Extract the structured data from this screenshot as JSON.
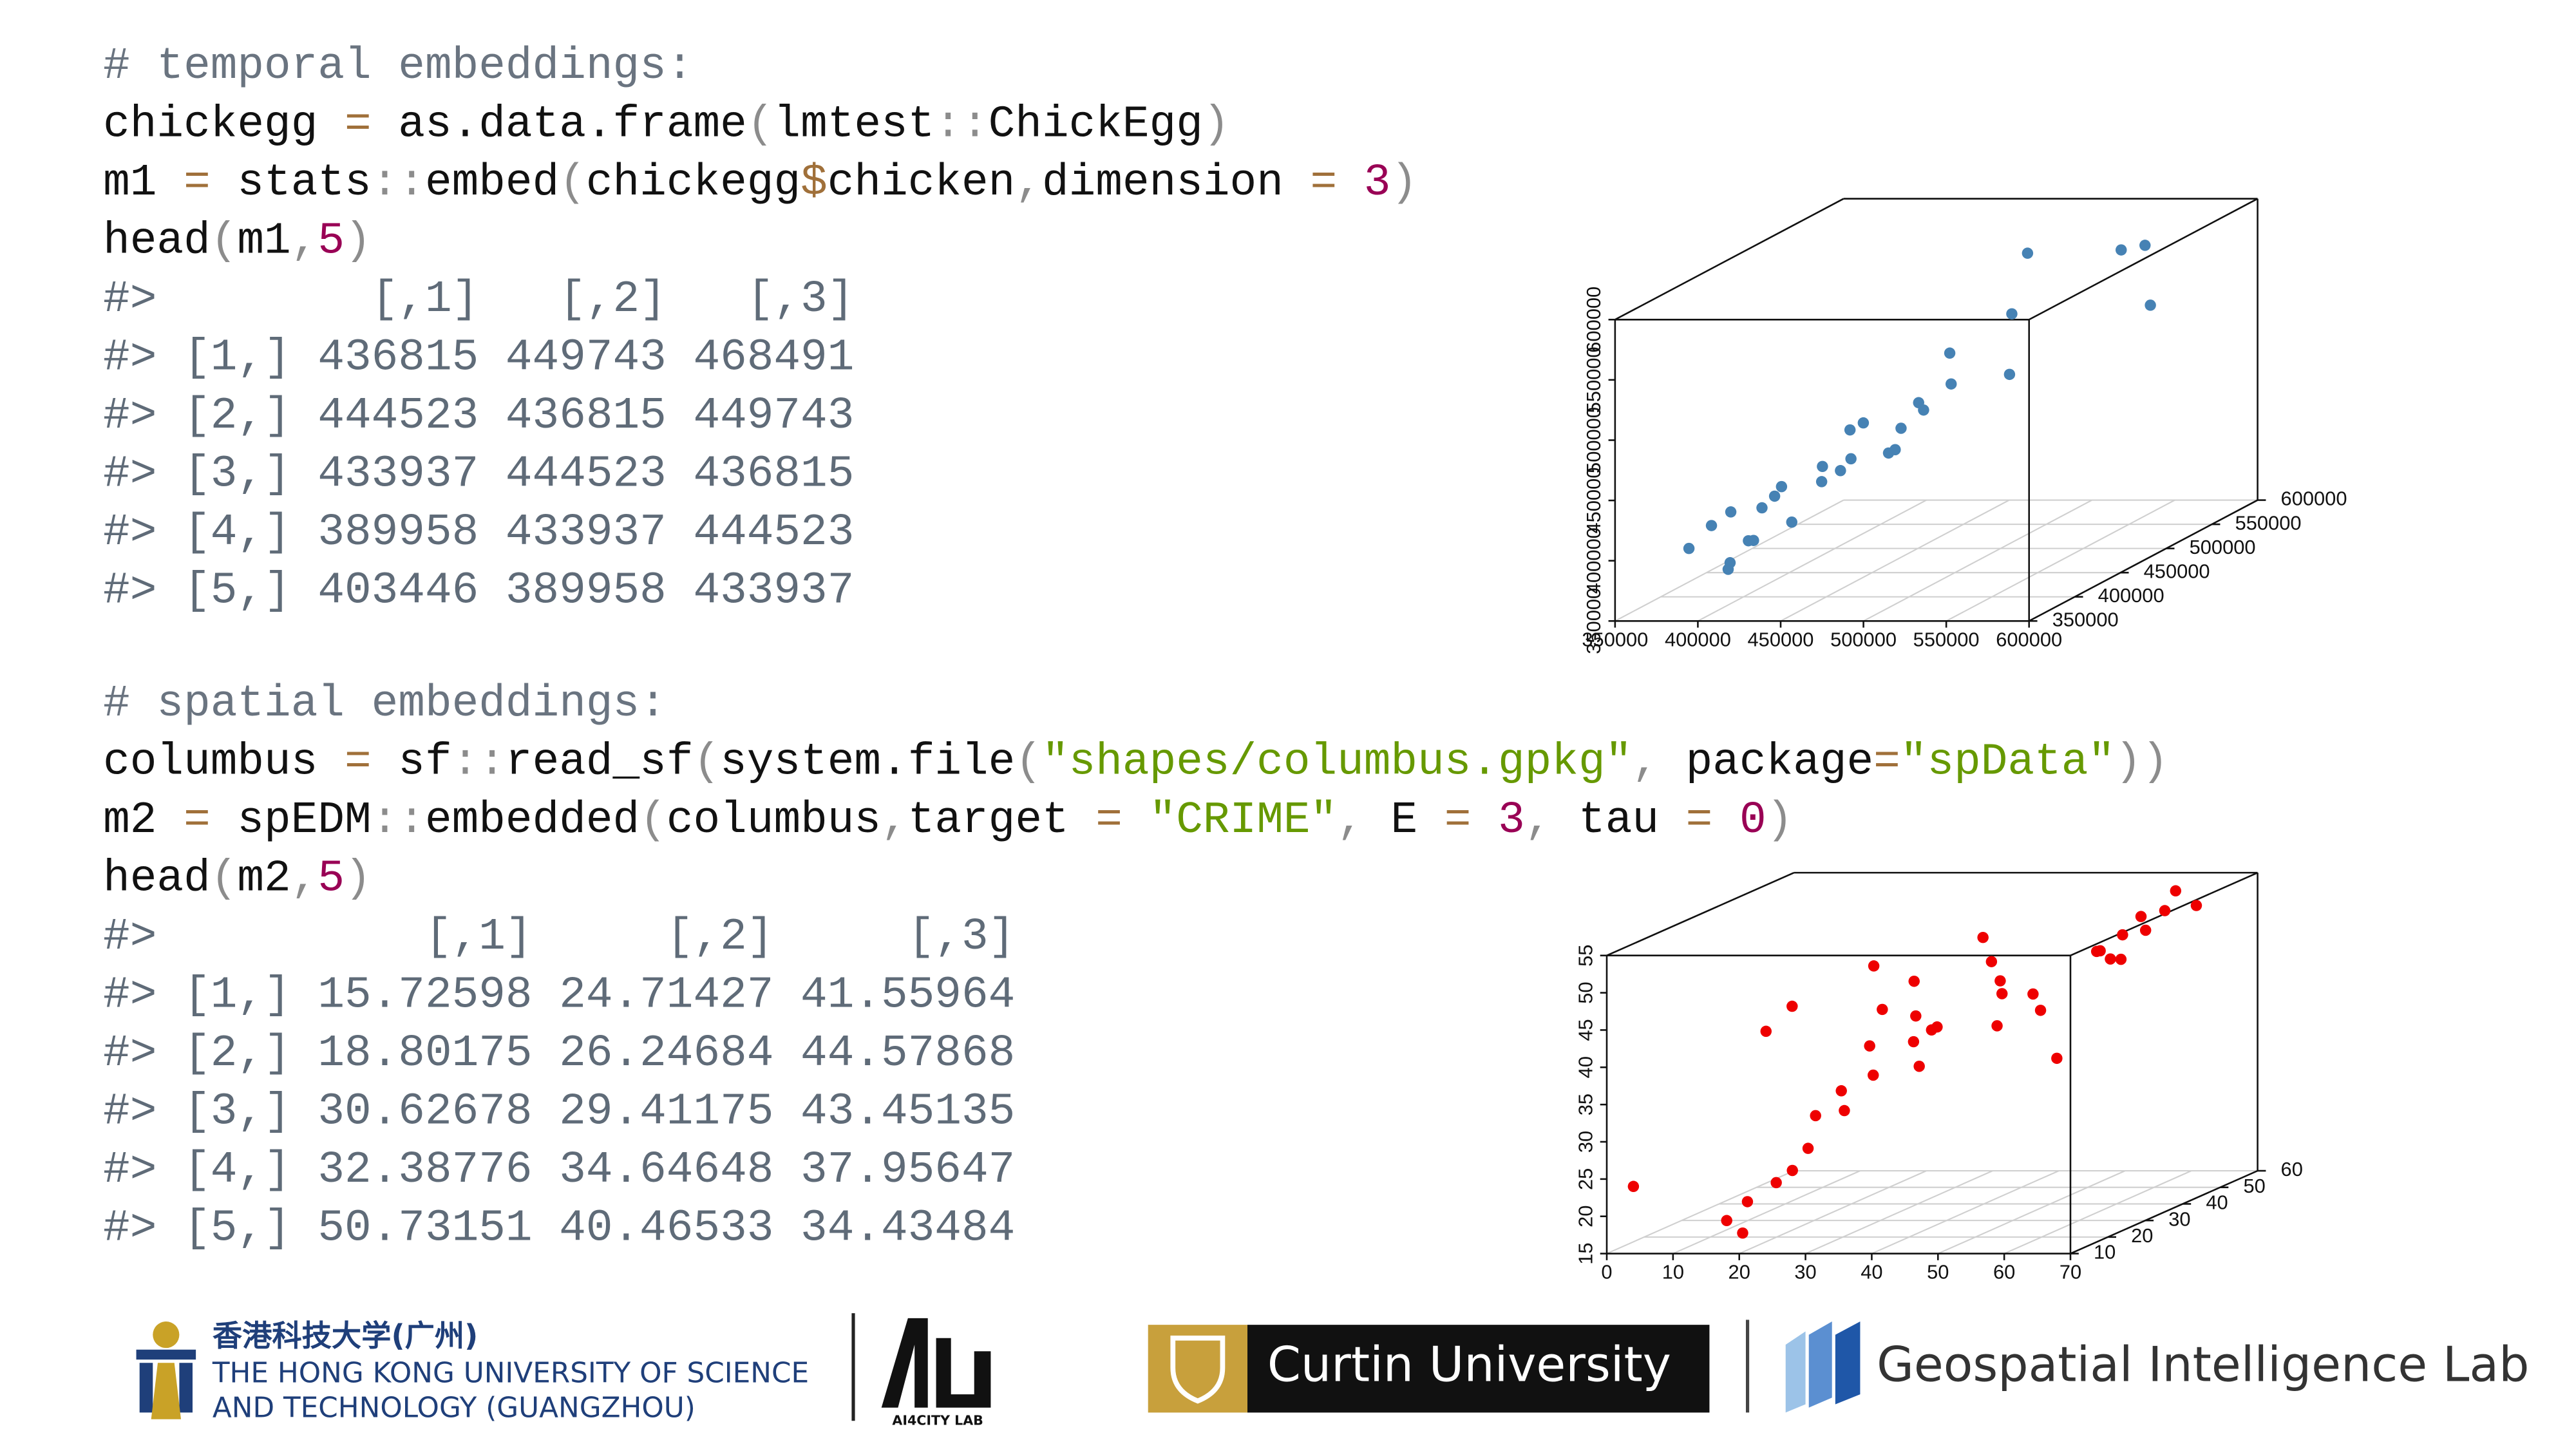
{
  "code": {
    "blocks": [
      {
        "lines": [
          [
            {
              "text": "# temporal embeddings:",
              "color": "#6a7480"
            }
          ],
          [
            {
              "text": "chickegg",
              "color": "#111111"
            },
            {
              "text": " = ",
              "color": "#a0703a"
            },
            {
              "text": "as.data.frame",
              "color": "#111111"
            },
            {
              "text": "(",
              "color": "#8c8c8c"
            },
            {
              "text": "lmtest",
              "color": "#111111"
            },
            {
              "text": "::",
              "color": "#8c8c8c"
            },
            {
              "text": "ChickEgg",
              "color": "#111111"
            },
            {
              "text": ")",
              "color": "#8c8c8c"
            }
          ],
          [
            {
              "text": "m1",
              "color": "#111111"
            },
            {
              "text": " = ",
              "color": "#a0703a"
            },
            {
              "text": "stats",
              "color": "#111111"
            },
            {
              "text": "::",
              "color": "#8c8c8c"
            },
            {
              "text": "embed",
              "color": "#111111"
            },
            {
              "text": "(",
              "color": "#8c8c8c"
            },
            {
              "text": "chickegg",
              "color": "#111111"
            },
            {
              "text": "$",
              "color": "#a0703a"
            },
            {
              "text": "chicken",
              "color": "#111111"
            },
            {
              "text": ",",
              "color": "#8c8c8c"
            },
            {
              "text": "dimension",
              "color": "#111111"
            },
            {
              "text": " = ",
              "color": "#a0703a"
            },
            {
              "text": "3",
              "color": "#990055"
            },
            {
              "text": ")",
              "color": "#8c8c8c"
            }
          ],
          [
            {
              "text": "head",
              "color": "#111111"
            },
            {
              "text": "(",
              "color": "#8c8c8c"
            },
            {
              "text": "m1",
              "color": "#111111"
            },
            {
              "text": ",",
              "color": "#8c8c8c"
            },
            {
              "text": "5",
              "color": "#990055"
            },
            {
              "text": ")",
              "color": "#8c8c8c"
            }
          ],
          [
            {
              "text": "#>        [,1]   [,2]   [,3]",
              "color": "#5f6b78"
            }
          ],
          [
            {
              "text": "#> [1,] 436815 449743 468491",
              "color": "#5f6b78"
            }
          ],
          [
            {
              "text": "#> [2,] 444523 436815 449743",
              "color": "#5f6b78"
            }
          ],
          [
            {
              "text": "#> [3,] 433937 444523 436815",
              "color": "#5f6b78"
            }
          ],
          [
            {
              "text": "#> [4,] 389958 433937 444523",
              "color": "#5f6b78"
            }
          ],
          [
            {
              "text": "#> [5,] 403446 389958 433937",
              "color": "#5f6b78"
            }
          ]
        ]
      },
      {
        "lines": [
          [
            {
              "text": "# spatial embeddings:",
              "color": "#6a7480"
            }
          ],
          [
            {
              "text": "columbus",
              "color": "#111111"
            },
            {
              "text": " = ",
              "color": "#a0703a"
            },
            {
              "text": "sf",
              "color": "#111111"
            },
            {
              "text": "::",
              "color": "#8c8c8c"
            },
            {
              "text": "read_sf",
              "color": "#111111"
            },
            {
              "text": "(",
              "color": "#8c8c8c"
            },
            {
              "text": "system.file",
              "color": "#111111"
            },
            {
              "text": "(",
              "color": "#8c8c8c"
            },
            {
              "text": "\"shapes/columbus.gpkg\"",
              "color": "#669900"
            },
            {
              "text": ", ",
              "color": "#8c8c8c"
            },
            {
              "text": "package",
              "color": "#111111"
            },
            {
              "text": "=",
              "color": "#a0703a"
            },
            {
              "text": "\"spData\"",
              "color": "#669900"
            },
            {
              "text": "))",
              "color": "#8c8c8c"
            }
          ],
          [
            {
              "text": "m2",
              "color": "#111111"
            },
            {
              "text": " = ",
              "color": "#a0703a"
            },
            {
              "text": "spEDM",
              "color": "#111111"
            },
            {
              "text": "::",
              "color": "#8c8c8c"
            },
            {
              "text": "embedded",
              "color": "#111111"
            },
            {
              "text": "(",
              "color": "#8c8c8c"
            },
            {
              "text": "columbus",
              "color": "#111111"
            },
            {
              "text": ",",
              "color": "#8c8c8c"
            },
            {
              "text": "target",
              "color": "#111111"
            },
            {
              "text": " = ",
              "color": "#a0703a"
            },
            {
              "text": "\"CRIME\"",
              "color": "#669900"
            },
            {
              "text": ", ",
              "color": "#8c8c8c"
            },
            {
              "text": "E",
              "color": "#111111"
            },
            {
              "text": " = ",
              "color": "#a0703a"
            },
            {
              "text": "3",
              "color": "#990055"
            },
            {
              "text": ", ",
              "color": "#8c8c8c"
            },
            {
              "text": "tau",
              "color": "#111111"
            },
            {
              "text": " = ",
              "color": "#a0703a"
            },
            {
              "text": "0",
              "color": "#990055"
            },
            {
              "text": ")",
              "color": "#8c8c8c"
            }
          ],
          [
            {
              "text": "head",
              "color": "#111111"
            },
            {
              "text": "(",
              "color": "#8c8c8c"
            },
            {
              "text": "m2",
              "color": "#111111"
            },
            {
              "text": ",",
              "color": "#8c8c8c"
            },
            {
              "text": "5",
              "color": "#990055"
            },
            {
              "text": ")",
              "color": "#8c8c8c"
            }
          ],
          [
            {
              "text": "#>          [,1]     [,2]     [,3]",
              "color": "#5f6b78"
            }
          ],
          [
            {
              "text": "#> [1,] 15.72598 24.71427 41.55964",
              "color": "#5f6b78"
            }
          ],
          [
            {
              "text": "#> [2,] 18.80175 26.24684 44.57868",
              "color": "#5f6b78"
            }
          ],
          [
            {
              "text": "#> [3,] 30.62678 29.41175 43.45135",
              "color": "#5f6b78"
            }
          ],
          [
            {
              "text": "#> [4,] 32.38776 34.64648 37.95647",
              "color": "#5f6b78"
            }
          ],
          [
            {
              "text": "#> [5,] 50.73151 40.46533 34.43484",
              "color": "#5f6b78"
            }
          ]
        ]
      }
    ]
  },
  "chart_data": [
    {
      "type": "scatter3d",
      "color": "#4682b4",
      "grid": true,
      "xlim": [
        350000,
        600000
      ],
      "ylim": [
        350000,
        600000
      ],
      "zlim": [
        350000,
        600000
      ],
      "xticks": [
        350000,
        400000,
        450000,
        500000,
        550000,
        600000
      ],
      "yticks": [
        350000,
        400000,
        450000,
        500000,
        550000,
        600000
      ],
      "zticks": [
        350000,
        400000,
        450000,
        500000,
        550000,
        600000
      ],
      "x": [
        389958,
        403446,
        376900,
        382100,
        397300,
        410200,
        392400,
        399800,
        420500,
        415600,
        405700,
        431200,
        428900,
        433937,
        444523,
        436815,
        449743,
        468491,
        441800,
        455300,
        472100,
        460900,
        486600,
        470200,
        498400,
        512700,
        489300,
        548900,
        575300,
        521600
      ],
      "y": [
        403446,
        376900,
        382100,
        397300,
        410200,
        392400,
        399800,
        420500,
        415600,
        405700,
        431200,
        428900,
        433937,
        444523,
        436815,
        449743,
        468491,
        441800,
        455300,
        472100,
        460900,
        486600,
        470200,
        498400,
        512700,
        489300,
        548900,
        575300,
        521600,
        592800
      ],
      "z": [
        376900,
        382100,
        397300,
        410200,
        392400,
        399800,
        420500,
        415600,
        405700,
        431200,
        428900,
        433937,
        444523,
        436815,
        449743,
        468491,
        441800,
        455300,
        472100,
        460900,
        486600,
        470200,
        498400,
        512700,
        489300,
        548900,
        575300,
        521600,
        592800,
        560400
      ]
    },
    {
      "type": "scatter3d",
      "color": "#ee0000",
      "grid": true,
      "xlim": [
        0,
        70
      ],
      "ylim": [
        10,
        60
      ],
      "zlim": [
        15,
        55
      ],
      "xticks": [
        0,
        10,
        20,
        30,
        40,
        50,
        60,
        70
      ],
      "yticks": [
        10,
        20,
        30,
        40,
        50,
        60
      ],
      "zticks": [
        15,
        20,
        25,
        30,
        35,
        40,
        45,
        50,
        55
      ],
      "x": [
        15.72598,
        18.80175,
        30.62678,
        32.38776,
        50.73151,
        26.07,
        0.18,
        38.43,
        30.52,
        34.0,
        20.05,
        38.3,
        61.3,
        40.07,
        52.79,
        56.92,
        60.0,
        55.53,
        62.28,
        56.71,
        46.72,
        57.07,
        48.59,
        54.84,
        36.87,
        43.96,
        54.52,
        36.66,
        29.03,
        16.49,
        27.82,
        26.65,
        22.54,
        15.73,
        30.45,
        33.71,
        24.23,
        21.46,
        19.1,
        41.97
      ],
      "y": [
        24.71427,
        26.24684,
        29.41175,
        34.64648,
        40.46533,
        35.2,
        16.8,
        42.5,
        38.1,
        36.6,
        30.3,
        45.0,
        50.6,
        44.2,
        48.4,
        52.0,
        55.8,
        49.1,
        57.3,
        53.6,
        41.2,
        46.8,
        39.9,
        47.5,
        33.0,
        37.8,
        44.4,
        28.6,
        22.1,
        18.4,
        31.0,
        25.5,
        19.7,
        14.2,
        27.3,
        32.9,
        20.9,
        17.3,
        12.5,
        40.0
      ],
      "z": [
        41.55964,
        44.57868,
        43.45135,
        37.95647,
        34.43484,
        48.0,
        22.5,
        50.2,
        45.3,
        39.1,
        29.0,
        46.4,
        52.0,
        44.0,
        47.1,
        50.9,
        53.5,
        45.8,
        51.2,
        48.7,
        42.9,
        49.6,
        41.0,
        46.2,
        40.3,
        43.7,
        47.9,
        36.0,
        31.5,
        20.1,
        38.2,
        33.4,
        24.0,
        18.5,
        35.1,
        41.8,
        26.7,
        22.9,
        17.2,
        38.9
      ]
    }
  ],
  "logos": {
    "hkust_cn": "香港科技大学(广州)",
    "hkust_en_1": "THE HONG KONG UNIVERSITY OF SCIENCE",
    "hkust_en_2": "AND TECHNOLOGY (GUANGZHOU)",
    "ai4city": "AI4CITY LAB",
    "curtin": "Curtin University",
    "geolab": "Geospatial Intelligence Lab"
  }
}
